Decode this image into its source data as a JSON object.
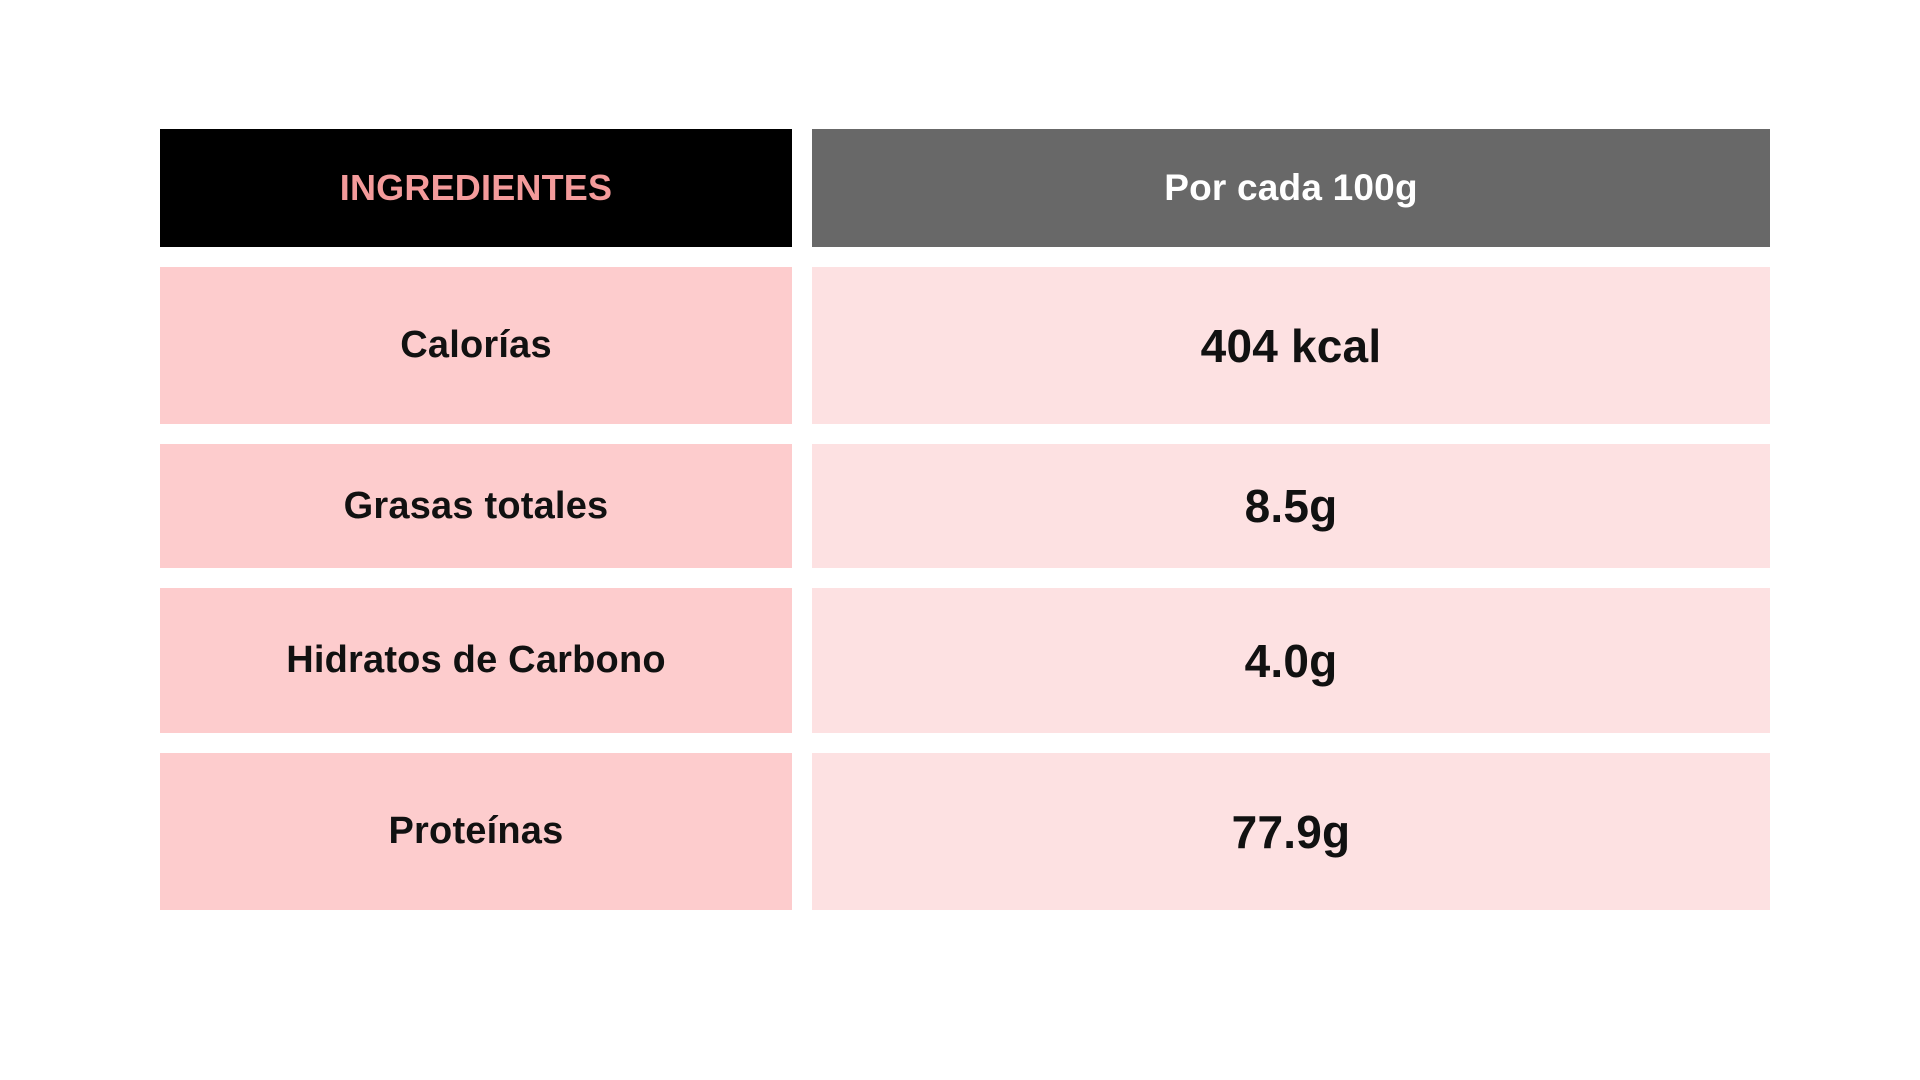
{
  "chart_data": {
    "type": "table",
    "columns": [
      "INGREDIENTES",
      "Por cada 100g"
    ],
    "rows": [
      {
        "label": "Calorías",
        "value": "404 kcal"
      },
      {
        "label": "Grasas totales",
        "value": "8.5g"
      },
      {
        "label": "Hidratos de Carbono",
        "value": "4.0g"
      },
      {
        "label": "Proteínas",
        "value": "77.9g"
      }
    ]
  },
  "colors": {
    "header_left_bg": "#000000",
    "header_left_text": "#f49b9b",
    "header_right_bg": "#686868",
    "label_bg": "#fdcccd",
    "value_bg": "#fde1e2"
  }
}
